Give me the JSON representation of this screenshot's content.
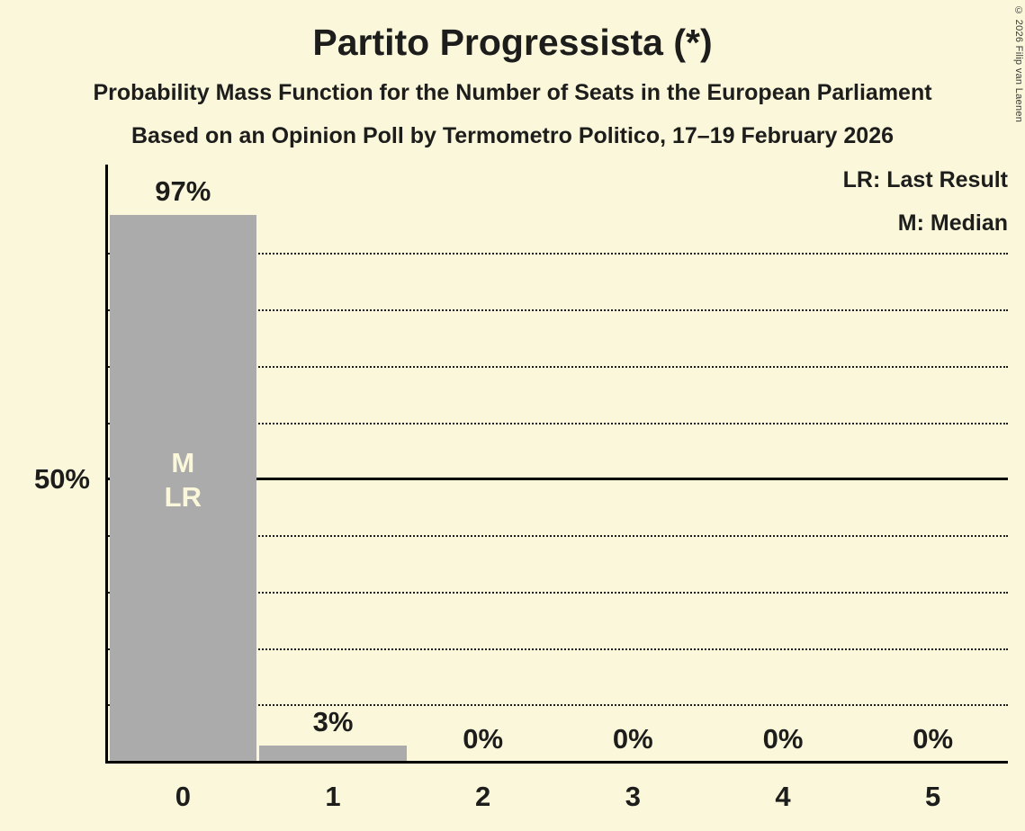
{
  "chart_data": {
    "type": "bar",
    "title": "Partito Progressista (*)",
    "subtitle": "Probability Mass Function for the Number of Seats in the European Parliament",
    "poll_line": "Based on an Opinion Poll by Termometro Politico, 17–19 February 2026",
    "copyright": "© 2026 Filip van Laenen",
    "legend": {
      "last_result": "LR: Last Result",
      "median": "M: Median"
    },
    "categories": [
      "0",
      "1",
      "2",
      "3",
      "4",
      "5"
    ],
    "values": [
      97,
      3,
      0,
      0,
      0,
      0
    ],
    "value_labels": [
      "97%",
      "3%",
      "0%",
      "0%",
      "0%",
      "0%"
    ],
    "y_axis": {
      "tick_label": "50%",
      "tick_value": 50
    },
    "ylim": [
      0,
      106
    ],
    "gridlines": {
      "dotted": [
        10,
        20,
        30,
        40,
        60,
        70,
        80,
        90
      ],
      "solid": [
        50
      ]
    },
    "annotation": {
      "bar_index": 0,
      "lines": [
        "M",
        "LR"
      ],
      "at_value": 50
    },
    "legend_position": "top-right",
    "colors": {
      "background": "#FBF7DB",
      "bar": "#ABABAB",
      "text": "#1D1D1B",
      "bar_label_text": "#FBF7DB"
    }
  }
}
